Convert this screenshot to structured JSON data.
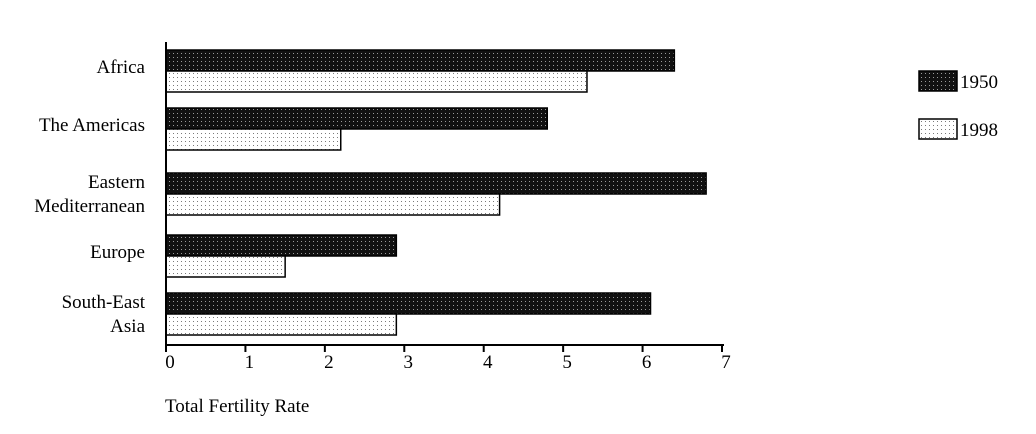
{
  "chart_data": {
    "type": "bar",
    "orientation": "horizontal",
    "categories": [
      [
        "Africa"
      ],
      [
        "The Americas"
      ],
      [
        "Eastern",
        "Mediterranean"
      ],
      [
        "Europe"
      ],
      [
        "South-East",
        "Asia"
      ]
    ],
    "series": [
      {
        "name": "1950",
        "values": [
          6.4,
          4.8,
          6.8,
          2.9,
          6.1
        ],
        "color": "#111111",
        "pattern": "dark-dots"
      },
      {
        "name": "1998",
        "values": [
          5.3,
          2.2,
          4.2,
          1.5,
          2.9
        ],
        "color": "#ffffff",
        "pattern": "light-dots"
      }
    ],
    "xlabel": "Total Fertility  Rate",
    "xlim": [
      0,
      7
    ],
    "xticks": [
      "0",
      "1",
      "2",
      "3",
      "4",
      "5",
      "6",
      "7"
    ],
    "grid": false,
    "legend": "top-right"
  }
}
